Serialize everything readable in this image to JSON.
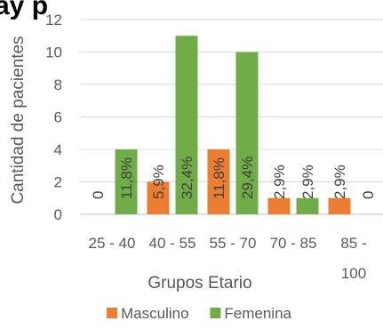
{
  "chart_data": {
    "type": "bar",
    "title": "ay p",
    "xlabel": "Grupos Etario",
    "ylabel": "Cantidad de pacientes",
    "ylim": [
      0,
      12
    ],
    "yticks": [
      0,
      2,
      4,
      6,
      8,
      10,
      12
    ],
    "grid": true,
    "legend_position": "bottom",
    "categories": [
      [
        "25 - 40"
      ],
      [
        "40 - 55"
      ],
      [
        "55 - 70"
      ],
      [
        "70 - 85"
      ],
      [
        "85 -",
        "100"
      ]
    ],
    "series": [
      {
        "name": "Masculino",
        "color": "#ED7D31",
        "values": [
          0,
          2,
          4,
          1,
          1
        ],
        "labels": [
          "0",
          "5,9%",
          "11,8%",
          "2,9%",
          "2,9%"
        ]
      },
      {
        "name": "Femenina",
        "color": "#70AD47",
        "values": [
          4,
          11,
          10,
          1,
          0
        ],
        "labels": [
          "11,8%",
          "32,4%",
          "29,4%",
          "2,9%",
          "0"
        ]
      }
    ]
  }
}
